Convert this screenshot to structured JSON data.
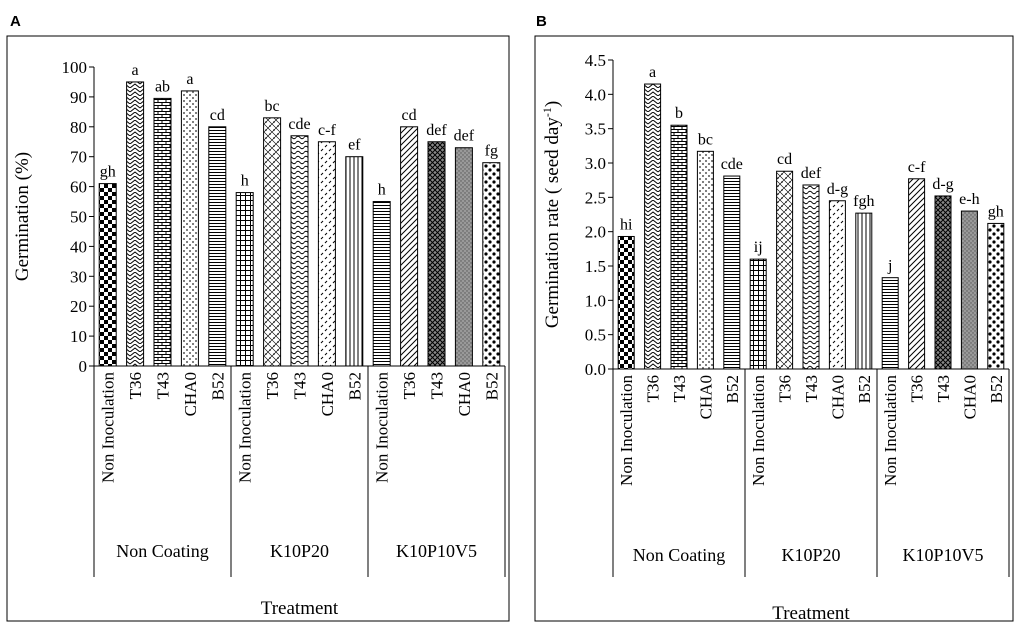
{
  "chart_data": [
    {
      "type": "bar",
      "panel_label": "A",
      "ylabel": "Germination  (%)",
      "xlabel": "Treatment",
      "ylim": [
        0,
        100
      ],
      "yticks": [
        0,
        10,
        20,
        30,
        40,
        50,
        60,
        70,
        80,
        90,
        100
      ],
      "groups": [
        {
          "name": "Non Coating",
          "categories": [
            "Non Inoculation",
            "T36",
            "T43",
            "CHA0",
            "B52"
          ],
          "values": [
            61,
            95,
            89.5,
            92,
            80
          ],
          "labels": [
            "gh",
            "a",
            "ab",
            "a",
            "cd"
          ]
        },
        {
          "name": "K10P20",
          "categories": [
            "Non Inoculation",
            "T36",
            "T43",
            "CHA0",
            "B52"
          ],
          "values": [
            58,
            83,
            77,
            75,
            70
          ],
          "labels": [
            "h",
            "bc",
            "cde",
            "c-f",
            "ef"
          ]
        },
        {
          "name": "K10P10V5",
          "categories": [
            "Non Inoculation",
            "T36",
            "T43",
            "CHA0",
            "B52"
          ],
          "values": [
            55,
            80,
            75,
            73,
            68
          ],
          "labels": [
            "h",
            "cd",
            "def",
            "def",
            "fg"
          ]
        }
      ]
    },
    {
      "type": "bar",
      "panel_label": "B",
      "ylabel": "Germination  rate ( seed day",
      "ylabel_sup": "-1",
      "ylabel_close": ")",
      "xlabel": "Treatment",
      "ylim": [
        0,
        4.5
      ],
      "yticks": [
        "0.0",
        "0.5",
        "1.0",
        "1.5",
        "2.0",
        "2.5",
        "3.0",
        "3.5",
        "4.0",
        "4.5"
      ],
      "groups": [
        {
          "name": "Non Coating",
          "categories": [
            "Non Inoculation",
            "T36",
            "T43",
            "CHA0",
            "B52"
          ],
          "values": [
            1.93,
            4.15,
            3.55,
            3.17,
            2.81
          ],
          "labels": [
            "hi",
            "a",
            "b",
            "bc",
            "cde"
          ]
        },
        {
          "name": "K10P20",
          "categories": [
            "Non Inoculation",
            "T36",
            "T43",
            "CHA0",
            "B52"
          ],
          "values": [
            1.6,
            2.88,
            2.68,
            2.45,
            2.27
          ],
          "labels": [
            "ij",
            "cd",
            "def",
            "d-g",
            "fgh"
          ]
        },
        {
          "name": "K10P10V5",
          "categories": [
            "Non Inoculation",
            "T36",
            "T43",
            "CHA0",
            "B52"
          ],
          "values": [
            1.33,
            2.77,
            2.52,
            2.3,
            2.12
          ],
          "labels": [
            "j",
            "c-f",
            "d-g",
            "e-h",
            "gh"
          ]
        }
      ]
    }
  ]
}
